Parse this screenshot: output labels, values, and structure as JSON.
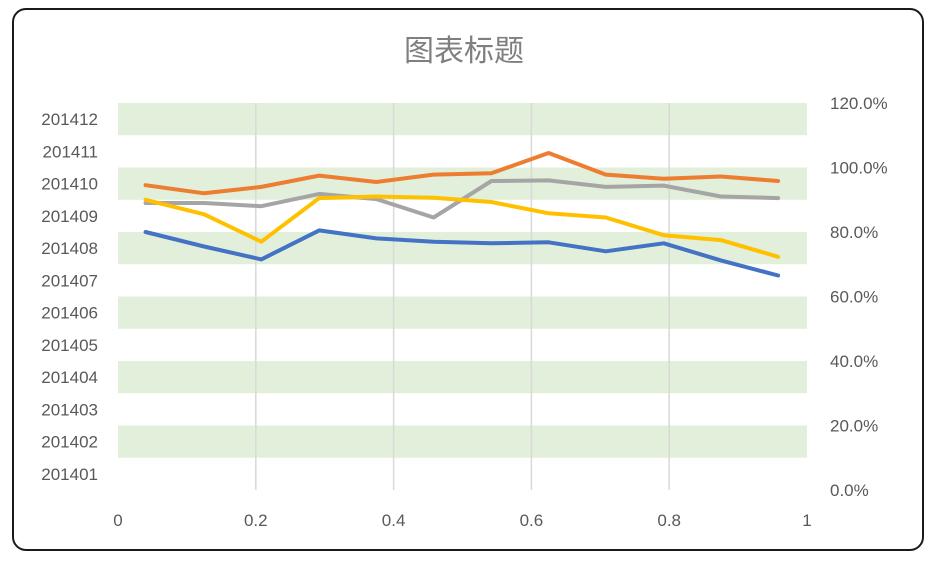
{
  "chart_data": {
    "type": "line",
    "title": "图表标题",
    "y_left_ticks": [
      "201401",
      "201402",
      "201403",
      "201404",
      "201405",
      "201406",
      "201407",
      "201408",
      "201409",
      "201410",
      "201411",
      "201412"
    ],
    "y_right_ticks": [
      "0.0%",
      "20.0%",
      "40.0%",
      "60.0%",
      "80.0%",
      "100.0%",
      "120.0%"
    ],
    "x_ticks": [
      "0",
      "0.2",
      "0.4",
      "0.6",
      "0.8",
      "1"
    ],
    "xlim": [
      0,
      1
    ],
    "ylim_right": [
      0,
      1.2
    ],
    "grid": "vertical gridlines at x ticks; alternating light-green horizontal bands",
    "legend": "none",
    "x": [
      0.04,
      0.125,
      0.208,
      0.292,
      0.375,
      0.458,
      0.542,
      0.625,
      0.708,
      0.792,
      0.875,
      0.958
    ],
    "series": [
      {
        "color": "#4472C4",
        "values": [
          0.8,
          0.755,
          0.715,
          0.805,
          0.78,
          0.77,
          0.765,
          0.768,
          0.74,
          0.765,
          0.712,
          0.665
        ]
      },
      {
        "color": "#ED7D31",
        "values": [
          0.945,
          0.92,
          0.94,
          0.975,
          0.955,
          0.978,
          0.982,
          1.045,
          0.978,
          0.965,
          0.972,
          0.958
        ]
      },
      {
        "color": "#A5A5A5",
        "values": [
          0.89,
          0.89,
          0.88,
          0.918,
          0.902,
          0.845,
          0.958,
          0.96,
          0.94,
          0.944,
          0.91,
          0.905
        ]
      },
      {
        "color": "#FFC000",
        "values": [
          0.9,
          0.855,
          0.77,
          0.905,
          0.91,
          0.906,
          0.893,
          0.858,
          0.845,
          0.79,
          0.775,
          0.723
        ]
      }
    ],
    "band_color": "#E2EFDA"
  }
}
